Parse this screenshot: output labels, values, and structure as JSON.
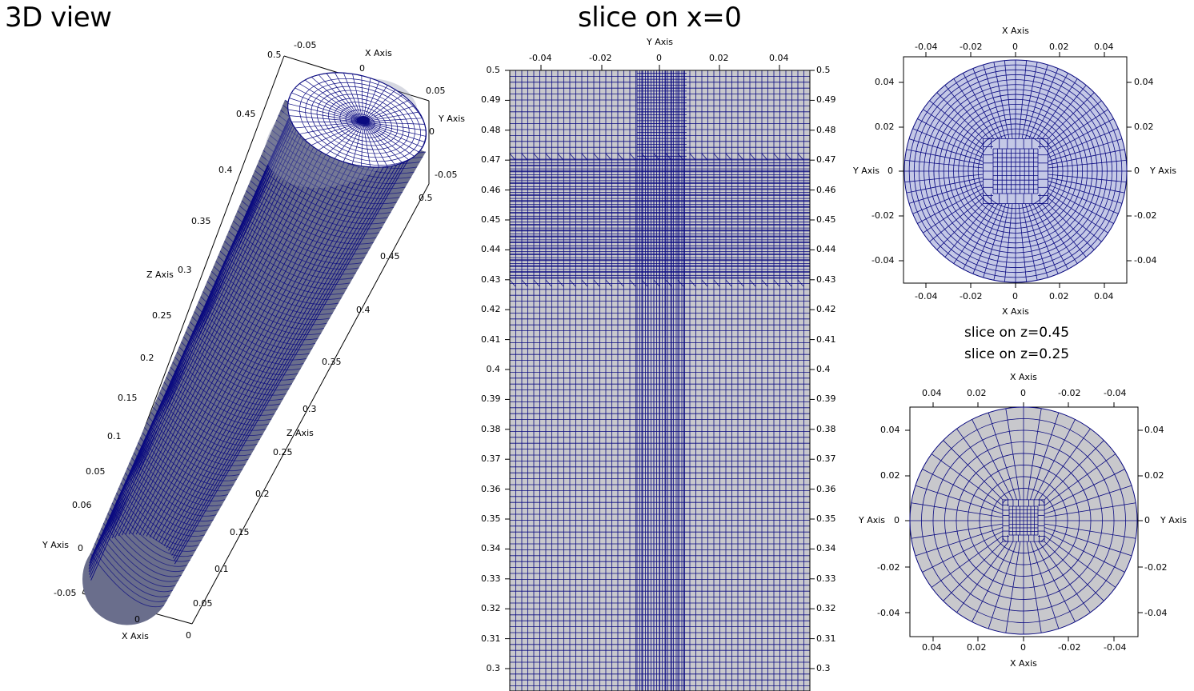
{
  "views": {
    "view3d": {
      "title": "3D view",
      "x_axis_label": "X Axis",
      "y_axis_label": "Y Axis",
      "z_axis_label": "Z Axis",
      "top_x_ticks": [
        "-0.05",
        "0",
        "0.05"
      ],
      "top_y_ticks": [
        "0.05",
        "0",
        "-0.05"
      ],
      "right_z_ticks": [
        "0.5",
        "0.45",
        "0.4",
        "0.35",
        "0.3",
        "0.25",
        "0.2",
        "0.15",
        "0.1",
        "0.05",
        "0"
      ],
      "left_z_ticks": [
        "0.5",
        "0.45",
        "0.4",
        "0.35",
        "0.3",
        "0.25",
        "0.2",
        "0.15",
        "0.1",
        "0.05",
        "0.06"
      ],
      "left_y_ticks": [
        "0",
        "-0.05"
      ],
      "bottom_x_ticks": [
        "0"
      ]
    },
    "slice_x": {
      "title": "slice on x=0",
      "y_axis_label": "Y Axis",
      "y_ticks": [
        "-0.04",
        "-0.02",
        "0",
        "0.02",
        "0.04"
      ],
      "z_ticks": [
        "0.5",
        "0.49",
        "0.48",
        "0.47",
        "0.46",
        "0.45",
        "0.44",
        "0.43",
        "0.42",
        "0.41",
        "0.4",
        "0.39",
        "0.38",
        "0.37",
        "0.36",
        "0.35",
        "0.34",
        "0.33",
        "0.32",
        "0.31",
        "0.3"
      ]
    },
    "slice_z045": {
      "title": "slice on z=0.45",
      "x_axis_label": "X Axis",
      "y_axis_label": "Y Axis",
      "x_ticks": [
        "-0.04",
        "-0.02",
        "0",
        "0.02",
        "0.04"
      ],
      "y_ticks": [
        "0.04",
        "0.02",
        "0",
        "-0.02",
        "-0.04"
      ]
    },
    "slice_z025": {
      "title": "slice on z=0.25",
      "x_axis_label": "X Axis",
      "y_axis_label": "Y Axis",
      "x_ticks": [
        "0.04",
        "0.02",
        "0",
        "-0.02",
        "-0.04"
      ],
      "y_ticks": [
        "0.04",
        "0.02",
        "0",
        "-0.02",
        "-0.04"
      ]
    }
  },
  "colors": {
    "mesh_line": "#0a0a80",
    "mesh_fill": "#c8c8cc",
    "top_cap_fill": "#ffffff",
    "axis_line": "#000000"
  }
}
